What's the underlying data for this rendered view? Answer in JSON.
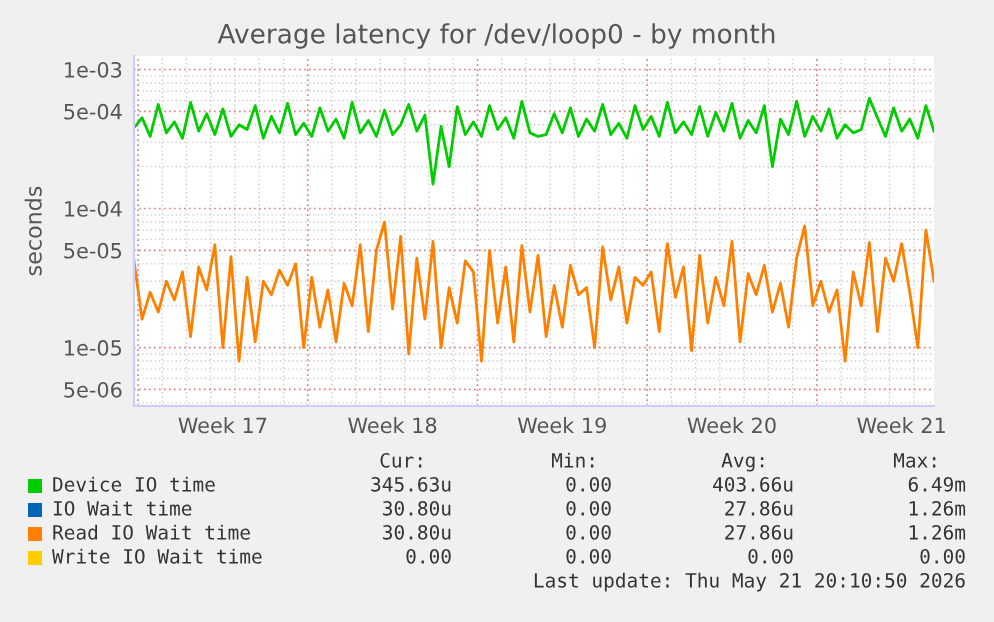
{
  "chart_data": {
    "type": "line",
    "title": "Average latency for /dev/loop0 - by month",
    "ylabel": "seconds",
    "log": "y",
    "grid": true,
    "legend": "bottom",
    "x": [
      "2026-04-18T20:00",
      "2026-04-19T04:00",
      "2026-04-19T12:00",
      "2026-04-19T20:00",
      "2026-04-20T04:00",
      "2026-04-20T12:00",
      "2026-04-20T20:00",
      "2026-04-21T04:00",
      "2026-04-21T12:00",
      "2026-04-21T20:00",
      "2026-04-22T04:00",
      "2026-04-22T12:00",
      "2026-04-22T20:00",
      "2026-04-23T04:00",
      "2026-04-23T12:00",
      "2026-04-23T20:00",
      "2026-04-24T04:00",
      "2026-04-24T12:00",
      "2026-04-24T20:00",
      "2026-04-25T04:00",
      "2026-04-25T12:00",
      "2026-04-25T20:00",
      "2026-04-26T04:00",
      "2026-04-26T12:00",
      "2026-04-26T20:00",
      "2026-04-27T04:00",
      "2026-04-27T12:00",
      "2026-04-27T20:00",
      "2026-04-28T04:00",
      "2026-04-28T12:00",
      "2026-04-28T20:00",
      "2026-04-29T04:00",
      "2026-04-29T12:00",
      "2026-04-29T20:00",
      "2026-04-30T04:00",
      "2026-04-30T12:00",
      "2026-04-30T20:00",
      "2026-05-01T04:00",
      "2026-05-01T12:00",
      "2026-05-01T20:00",
      "2026-05-02T04:00",
      "2026-05-02T12:00",
      "2026-05-02T20:00",
      "2026-05-03T04:00",
      "2026-05-03T12:00",
      "2026-05-03T20:00",
      "2026-05-04T04:00",
      "2026-05-04T12:00",
      "2026-05-04T20:00",
      "2026-05-05T04:00",
      "2026-05-05T12:00",
      "2026-05-05T20:00",
      "2026-05-06T04:00",
      "2026-05-06T12:00",
      "2026-05-06T20:00",
      "2026-05-07T04:00",
      "2026-05-07T12:00",
      "2026-05-07T20:00",
      "2026-05-08T04:00",
      "2026-05-08T12:00",
      "2026-05-08T20:00",
      "2026-05-09T04:00",
      "2026-05-09T12:00",
      "2026-05-09T20:00",
      "2026-05-10T04:00",
      "2026-05-10T12:00",
      "2026-05-10T20:00",
      "2026-05-11T04:00",
      "2026-05-11T12:00",
      "2026-05-11T20:00",
      "2026-05-12T04:00",
      "2026-05-12T12:00",
      "2026-05-12T20:00",
      "2026-05-13T04:00",
      "2026-05-13T12:00",
      "2026-05-13T20:00",
      "2026-05-14T04:00",
      "2026-05-14T12:00",
      "2026-05-14T20:00",
      "2026-05-15T04:00",
      "2026-05-15T12:00",
      "2026-05-15T20:00",
      "2026-05-16T04:00",
      "2026-05-16T12:00",
      "2026-05-16T20:00",
      "2026-05-17T04:00",
      "2026-05-17T12:00",
      "2026-05-17T20:00",
      "2026-05-18T04:00",
      "2026-05-18T12:00",
      "2026-05-18T20:00",
      "2026-05-19T04:00",
      "2026-05-19T12:00",
      "2026-05-19T20:00",
      "2026-05-20T04:00",
      "2026-05-20T12:00",
      "2026-05-20T20:00",
      "2026-05-21T04:00",
      "2026-05-21T12:00",
      "2026-05-21T20:00"
    ],
    "xlim": [
      "2026-04-18T20:00",
      "2026-05-21T20:00"
    ],
    "xticks": [
      {
        "value": "2026-04-19",
        "label": null
      },
      {
        "value": "2026-04-22T12:00",
        "label": "Week 17"
      },
      {
        "value": "2026-04-26",
        "label": null
      },
      {
        "value": "2026-04-29T12:00",
        "label": "Week 18"
      },
      {
        "value": "2026-05-03",
        "label": null
      },
      {
        "value": "2026-05-06T12:00",
        "label": "Week 19"
      },
      {
        "value": "2026-05-10",
        "label": null
      },
      {
        "value": "2026-05-13T12:00",
        "label": "Week 20"
      },
      {
        "value": "2026-05-17",
        "label": null
      },
      {
        "value": "2026-05-20T12:00",
        "label": "Week 21"
      }
    ],
    "ylim": [
      3.8e-06,
      0.00125
    ],
    "yticks": [
      {
        "value": 5e-06,
        "label": "5e-06"
      },
      {
        "value": 1e-05,
        "label": "1e-05"
      },
      {
        "value": 5e-05,
        "label": "5e-05"
      },
      {
        "value": 0.0001,
        "label": "1e-04"
      },
      {
        "value": 0.0005,
        "label": "5e-04"
      },
      {
        "value": 0.001,
        "label": "1e-03"
      }
    ],
    "series": [
      {
        "name": "Device IO time",
        "color": "#00cc00",
        "values": [
          0.00038,
          0.00045,
          0.00033,
          0.00056,
          0.00035,
          0.00042,
          0.00032,
          0.00058,
          0.00036,
          0.00048,
          0.00034,
          0.00052,
          0.00033,
          0.0004,
          0.00037,
          0.00055,
          0.00032,
          0.00046,
          0.00035,
          0.00057,
          0.00034,
          0.00041,
          0.00033,
          0.00053,
          0.00036,
          0.00044,
          0.00032,
          0.00058,
          0.00035,
          0.00043,
          0.00033,
          0.00051,
          0.00034,
          0.0004,
          0.00056,
          0.00036,
          0.00047,
          0.00015,
          0.00039,
          0.0002,
          0.00054,
          0.00034,
          0.00042,
          0.00033,
          0.00055,
          0.00037,
          0.00045,
          0.00032,
          0.00059,
          0.00035,
          0.00033,
          0.00034,
          0.00048,
          0.00035,
          0.00053,
          0.00033,
          0.00044,
          0.00036,
          0.00056,
          0.00034,
          0.00041,
          0.00032,
          0.00055,
          0.00037,
          0.00046,
          0.00033,
          0.00058,
          0.00035,
          0.00042,
          0.00034,
          0.00054,
          0.00033,
          0.00049,
          0.00036,
          0.00057,
          0.00032,
          0.00043,
          0.00035,
          0.00055,
          0.0002,
          0.00044,
          0.00034,
          0.00059,
          0.00033,
          0.00046,
          0.00036,
          0.00052,
          0.00032,
          0.0004,
          0.00035,
          0.00037,
          0.00062,
          0.00045,
          0.00033,
          0.00053,
          0.00036,
          0.00044,
          0.00032,
          0.00055,
          0.00036
        ]
      },
      {
        "name": "IO Wait time",
        "color": "#0066b3",
        "values": [
          null,
          null,
          null,
          null,
          null,
          null,
          null,
          null,
          null,
          null,
          null,
          null,
          null,
          null,
          null,
          null,
          null,
          null,
          null,
          null,
          null,
          null,
          null,
          null,
          null,
          null,
          null,
          null,
          null,
          null,
          null,
          null,
          null,
          null,
          null,
          null,
          null,
          null,
          null,
          null,
          null,
          null,
          null,
          null,
          null,
          null,
          null,
          null,
          null,
          null,
          null,
          null,
          null,
          null,
          null,
          null,
          null,
          null,
          null,
          null,
          null,
          null,
          null,
          null,
          null,
          null,
          null,
          null,
          null,
          null,
          null,
          null,
          null,
          null,
          null,
          null,
          null,
          null,
          null,
          null,
          null,
          null,
          null,
          null,
          null,
          null,
          null,
          null,
          null,
          null,
          null,
          null,
          null,
          null,
          null,
          null,
          null,
          null,
          null,
          null
        ]
      },
      {
        "name": "Read IO Wait time",
        "color": "#ff8000",
        "values": [
          4.2e-05,
          1.6e-05,
          2.5e-05,
          1.8e-05,
          3e-05,
          2.2e-05,
          3.5e-05,
          1.2e-05,
          3.8e-05,
          2.6e-05,
          5.5e-05,
          1e-05,
          4.5e-05,
          8e-06,
          3.2e-05,
          1.1e-05,
          3e-05,
          2.4e-05,
          3.6e-05,
          2.8e-05,
          4e-05,
          1e-05,
          3.2e-05,
          1.4e-05,
          2.6e-05,
          1.1e-05,
          2.9e-05,
          2e-05,
          5.5e-05,
          1.3e-05,
          5e-05,
          8e-05,
          1.9e-05,
          6.3e-05,
          9e-06,
          4.4e-05,
          1.6e-05,
          5.8e-05,
          1e-05,
          2.7e-05,
          1.5e-05,
          4.2e-05,
          3.5e-05,
          8e-06,
          5e-05,
          1.5e-05,
          3.8e-05,
          1.1e-05,
          5.4e-05,
          1.8e-05,
          4.6e-05,
          1.2e-05,
          2.8e-05,
          1.4e-05,
          3.9e-05,
          2.4e-05,
          2.7e-05,
          1e-05,
          5.3e-05,
          2.2e-05,
          3.8e-05,
          1.5e-05,
          3.2e-05,
          2.8e-05,
          3.5e-05,
          1.3e-05,
          5.6e-05,
          2.3e-05,
          3.8e-05,
          9.5e-06,
          4.6e-05,
          1.5e-05,
          3.2e-05,
          2e-05,
          5.8e-05,
          1.1e-05,
          3.4e-05,
          2.4e-05,
          3.9e-05,
          1.8e-05,
          2.9e-05,
          1.4e-05,
          4.4e-05,
          7.5e-05,
          2e-05,
          3e-05,
          1.8e-05,
          2.6e-05,
          8e-06,
          3.5e-05,
          2e-05,
          5.7e-05,
          1.3e-05,
          4.4e-05,
          3e-05,
          5.6e-05,
          2.5e-05,
          1e-05,
          7e-05,
          3e-05
        ]
      },
      {
        "name": "Write IO Wait time",
        "color": "#ffcc00",
        "values": [
          null,
          null,
          null,
          null,
          null,
          null,
          null,
          null,
          null,
          null,
          null,
          null,
          null,
          null,
          null,
          null,
          null,
          null,
          null,
          null,
          null,
          null,
          null,
          null,
          null,
          null,
          null,
          null,
          null,
          null,
          null,
          null,
          null,
          null,
          null,
          null,
          null,
          null,
          null,
          null,
          null,
          null,
          null,
          null,
          null,
          null,
          null,
          null,
          null,
          null,
          null,
          null,
          null,
          null,
          null,
          null,
          null,
          null,
          null,
          null,
          null,
          null,
          null,
          null,
          null,
          null,
          null,
          null,
          null,
          null,
          null,
          null,
          null,
          null,
          null,
          null,
          null,
          null,
          null,
          null,
          null,
          null,
          null,
          null,
          null,
          null,
          null,
          null,
          null,
          null,
          null,
          null,
          null,
          null,
          null,
          null,
          null,
          null,
          null,
          null
        ]
      }
    ],
    "annotations": [
      "Cur:",
      "Min:",
      "Avg:",
      "Max:",
      "345.63u",
      "0.00",
      "403.66u",
      "6.49m",
      "30.80u",
      "0.00",
      "27.86u",
      "1.26m",
      "30.80u",
      "0.00",
      "27.86u",
      "1.26m",
      "0.00",
      "0.00",
      "0.00",
      "0.00",
      "Last update: Thu May 21 20:10:50 2026"
    ]
  }
}
